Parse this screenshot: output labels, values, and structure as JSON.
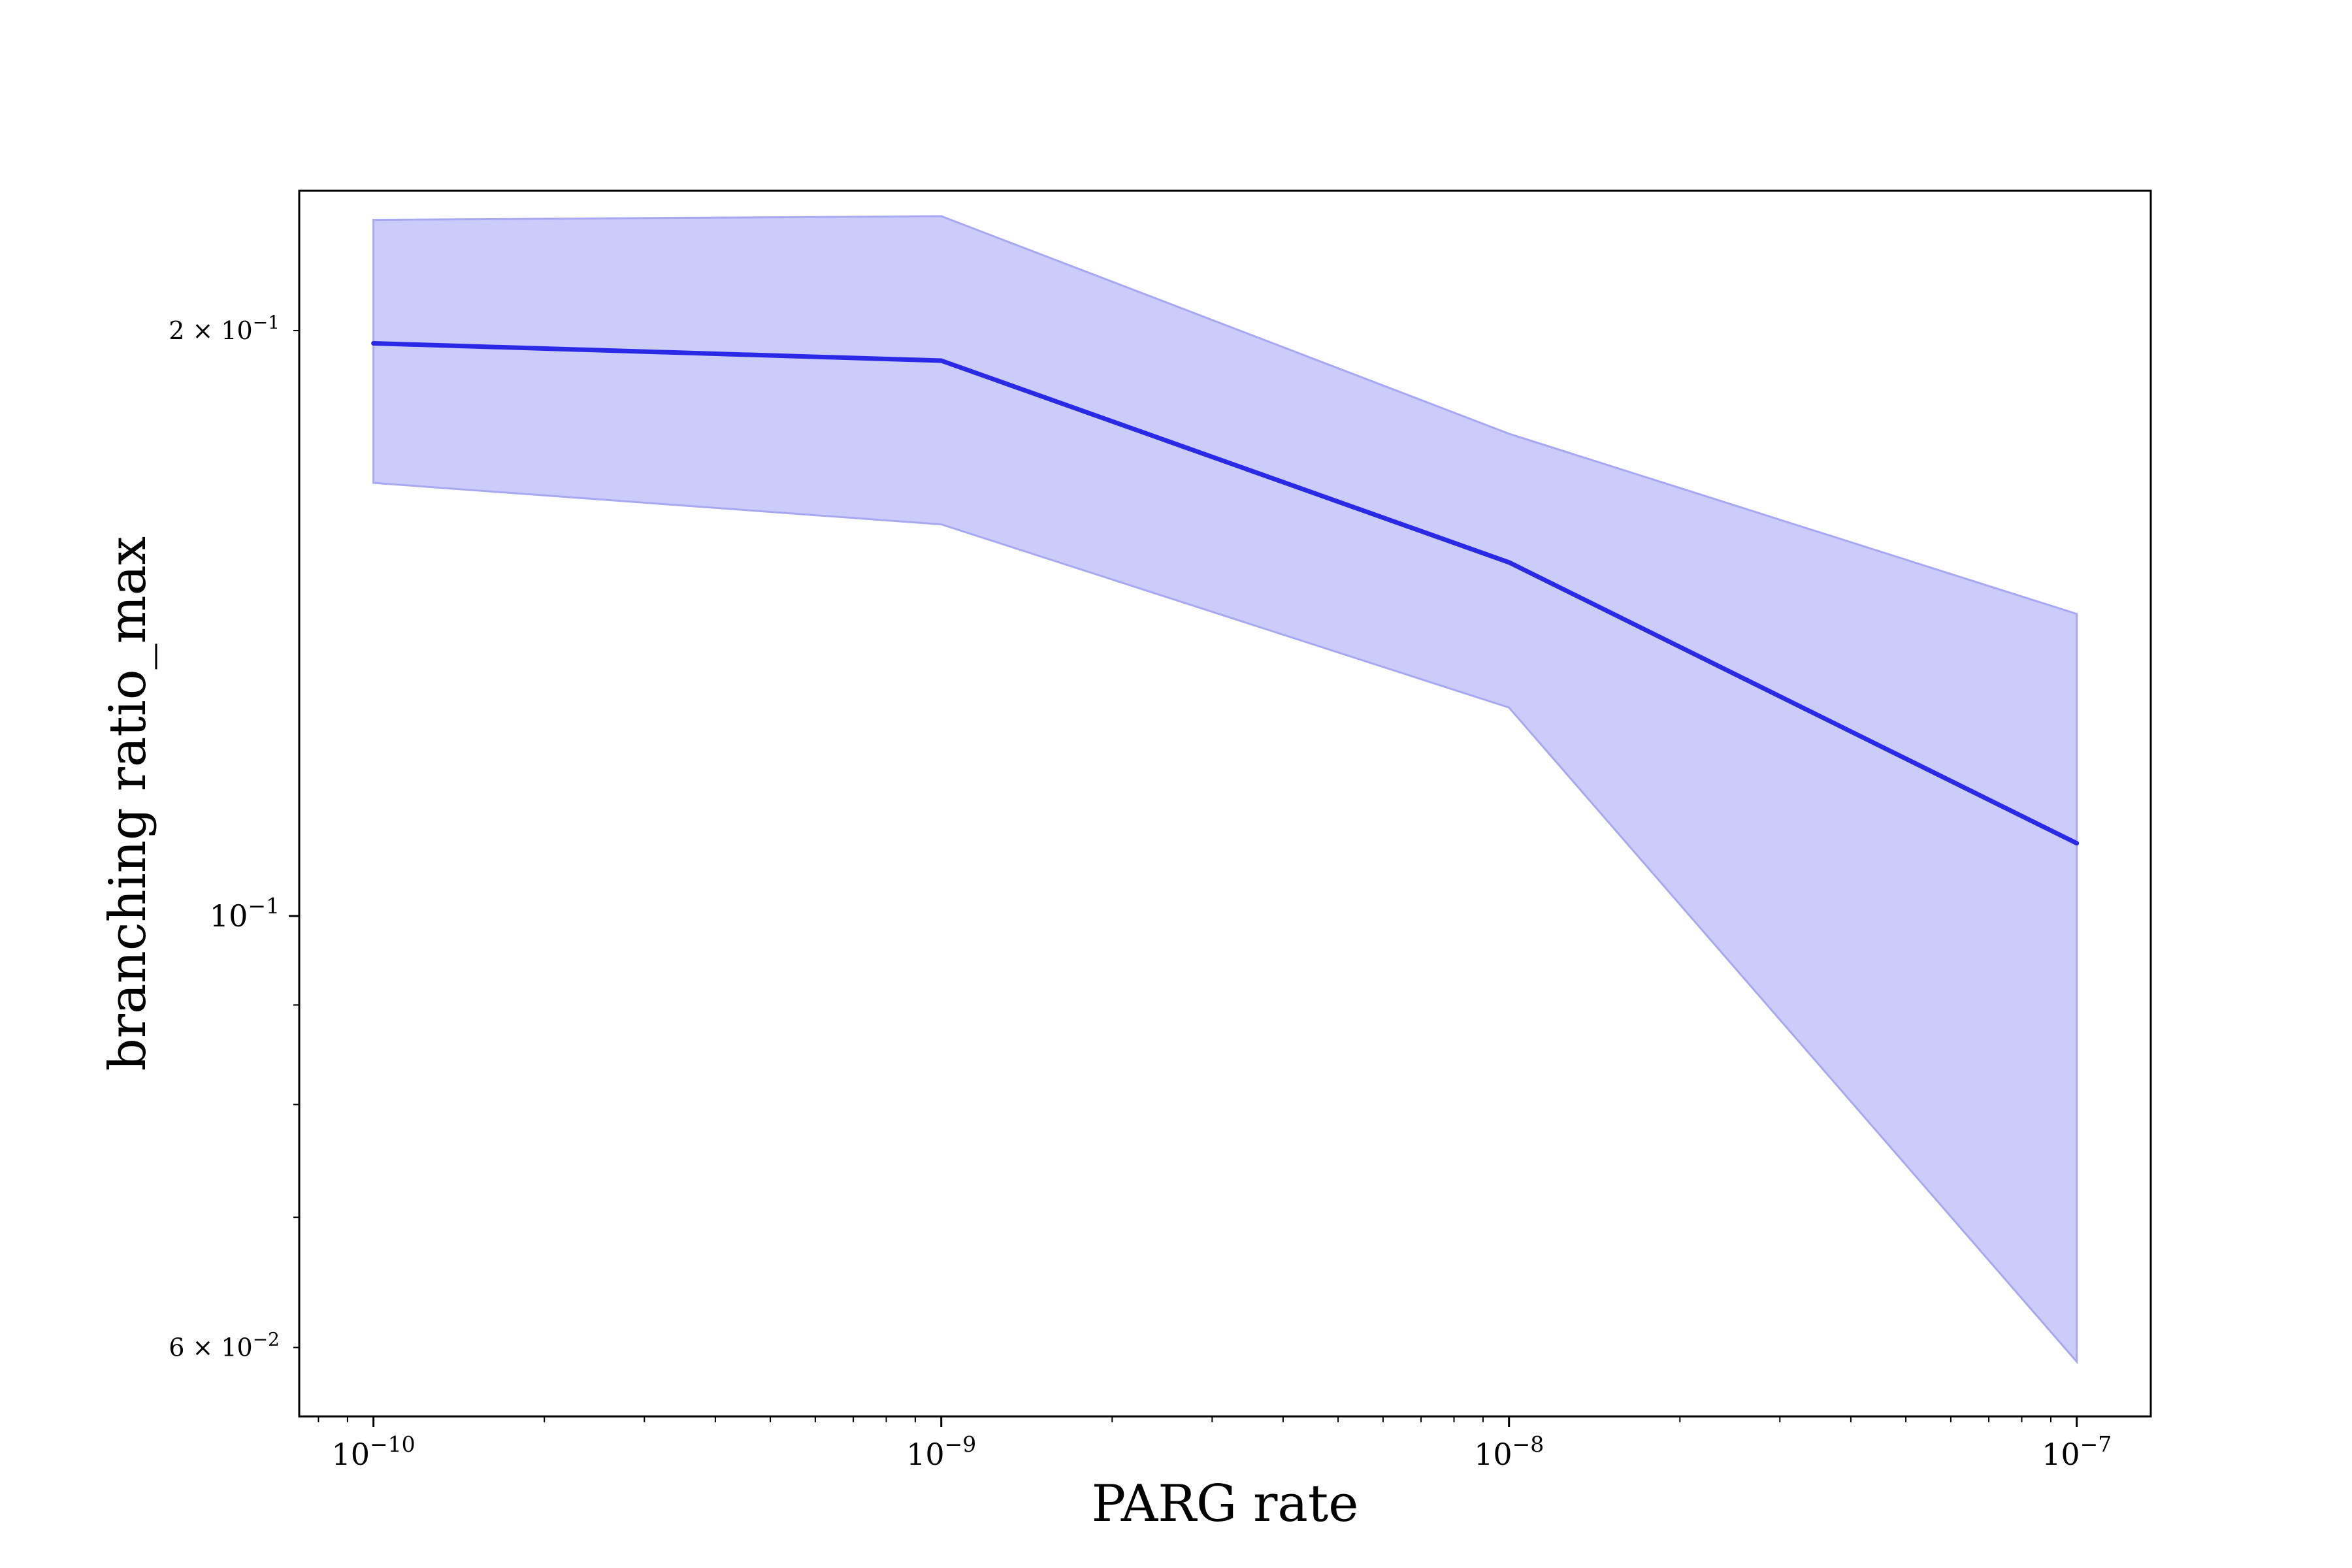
{
  "chart_data": {
    "type": "line",
    "title": "",
    "xlabel": "PARG rate",
    "ylabel": "branching ratio_max",
    "x_scale": "log",
    "y_scale": "log",
    "xlim": [
      7.4e-11,
      1.35e-07
    ],
    "ylim": [
      0.0553,
      0.236
    ],
    "grid": false,
    "legend": "none",
    "x_ticks": [
      {
        "value": 1e-10,
        "base": "10",
        "exp": "−10"
      },
      {
        "value": 1e-09,
        "base": "10",
        "exp": "−9"
      },
      {
        "value": 1e-08,
        "base": "10",
        "exp": "−8"
      },
      {
        "value": 1e-07,
        "base": "10",
        "exp": "−7"
      }
    ],
    "y_ticks": [
      {
        "value": 0.2,
        "base": "2 × 10",
        "exp": "−1",
        "size": "small"
      },
      {
        "value": 0.1,
        "base": "10",
        "exp": "−1",
        "size": "large"
      },
      {
        "value": 0.06,
        "base": "6 × 10",
        "exp": "−2",
        "size": "small"
      }
    ],
    "series": [
      {
        "x": [
          1e-10,
          1e-09,
          1e-08,
          1e-07
        ],
        "y": [
          0.197,
          0.193,
          0.152,
          0.109
        ],
        "ci_lower": [
          0.167,
          0.159,
          0.128,
          0.059
        ],
        "ci_upper": [
          0.228,
          0.229,
          0.177,
          0.143
        ]
      }
    ],
    "colors": {
      "line": "#2a2ae6",
      "band_fill": "#ccccfa",
      "band_edge": "#a8a8f2",
      "axes": "#000000"
    }
  }
}
